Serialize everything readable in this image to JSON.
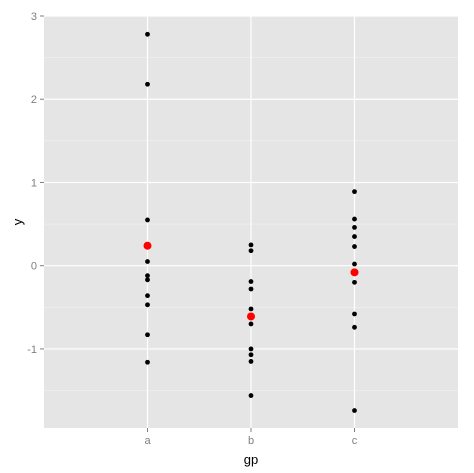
{
  "chart_data": {
    "type": "scatter",
    "title": "",
    "xlabel": "gp",
    "ylabel": "y",
    "categories": [
      "a",
      "b",
      "c"
    ],
    "ylim": [
      -1.95,
      3.0
    ],
    "y_ticks": [
      -1,
      0,
      1,
      2,
      3
    ],
    "y_tick_labels": [
      "-1",
      "0",
      "1",
      "2",
      "3"
    ],
    "grid": true,
    "legend": "none",
    "colors": {
      "panel_bg": "#e5e5e5",
      "grid_major": "#ffffff",
      "grid_minor": "#f2f2f2",
      "points": "#000000",
      "means": "#ff0000"
    },
    "series": [
      {
        "points": [
          {
            "x": "a",
            "y": 2.78
          },
          {
            "x": "a",
            "y": 2.18
          },
          {
            "x": "a",
            "y": 0.55
          },
          {
            "x": "a",
            "y": 0.05
          },
          {
            "x": "a",
            "y": -0.12
          },
          {
            "x": "a",
            "y": -0.17
          },
          {
            "x": "a",
            "y": -0.36
          },
          {
            "x": "a",
            "y": -0.47
          },
          {
            "x": "a",
            "y": -0.83
          },
          {
            "x": "a",
            "y": -1.16
          },
          {
            "x": "b",
            "y": 0.25
          },
          {
            "x": "b",
            "y": 0.18
          },
          {
            "x": "b",
            "y": -0.19
          },
          {
            "x": "b",
            "y": -0.28
          },
          {
            "x": "b",
            "y": -0.52
          },
          {
            "x": "b",
            "y": -0.7
          },
          {
            "x": "b",
            "y": -1.0
          },
          {
            "x": "b",
            "y": -1.07
          },
          {
            "x": "b",
            "y": -1.15
          },
          {
            "x": "b",
            "y": -1.56
          },
          {
            "x": "c",
            "y": 0.89
          },
          {
            "x": "c",
            "y": 0.56
          },
          {
            "x": "c",
            "y": 0.46
          },
          {
            "x": "c",
            "y": 0.35
          },
          {
            "x": "c",
            "y": 0.23
          },
          {
            "x": "c",
            "y": 0.02
          },
          {
            "x": "c",
            "y": -0.2
          },
          {
            "x": "c",
            "y": -0.58
          },
          {
            "x": "c",
            "y": -0.74
          },
          {
            "x": "c",
            "y": -1.74
          }
        ]
      },
      {
        "points": [
          {
            "x": "a",
            "y": 0.24
          },
          {
            "x": "b",
            "y": -0.61
          },
          {
            "x": "c",
            "y": -0.08
          }
        ]
      }
    ]
  }
}
